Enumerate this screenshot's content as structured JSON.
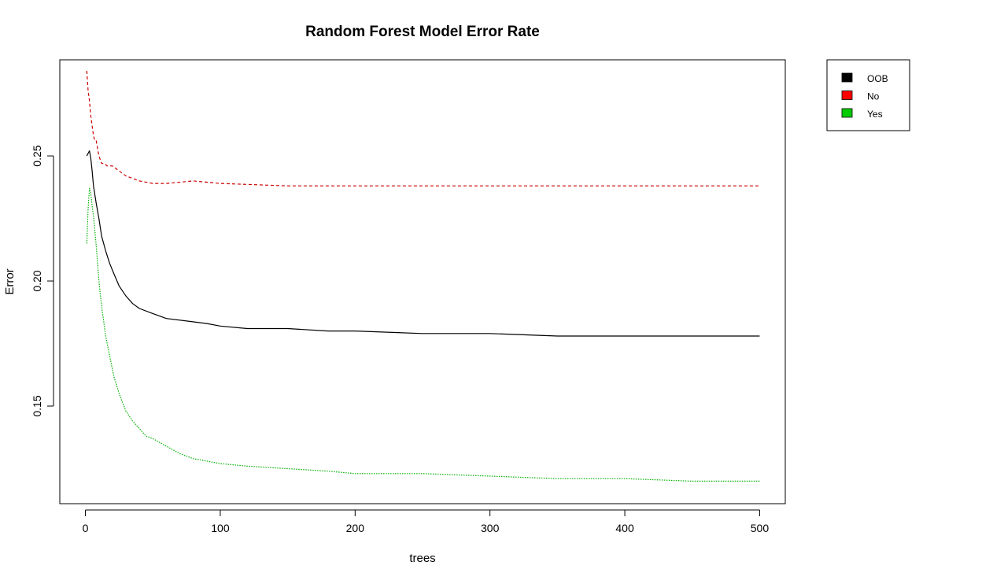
{
  "chart_data": {
    "type": "line",
    "title": "Random Forest Model Error Rate",
    "xlabel": "trees",
    "ylabel": "Error",
    "xlim": [
      -19,
      519
    ],
    "ylim": [
      0.111,
      0.2884
    ],
    "x_ticks": [
      0,
      100,
      200,
      300,
      400,
      500
    ],
    "x_tick_labels": [
      "0",
      "100",
      "200",
      "300",
      "400",
      "500"
    ],
    "y_ticks": [
      0.15,
      0.2,
      0.25
    ],
    "y_tick_labels": [
      "0.15",
      "0.20",
      "0.25"
    ],
    "grid": false,
    "legend_position": "outside-top-right",
    "series": [
      {
        "name": "OOB",
        "color": "#000000",
        "dash": "solid",
        "x": [
          1,
          2,
          3,
          4,
          5,
          6,
          8,
          10,
          12,
          15,
          18,
          21,
          25,
          30,
          35,
          40,
          50,
          60,
          75,
          90,
          100,
          120,
          150,
          180,
          200,
          250,
          300,
          350,
          400,
          450,
          500
        ],
        "values": [
          0.25,
          0.251,
          0.252,
          0.249,
          0.244,
          0.238,
          0.231,
          0.225,
          0.218,
          0.212,
          0.207,
          0.203,
          0.198,
          0.194,
          0.191,
          0.189,
          0.187,
          0.185,
          0.184,
          0.183,
          0.182,
          0.181,
          0.181,
          0.18,
          0.18,
          0.179,
          0.179,
          0.178,
          0.178,
          0.178,
          0.178
        ]
      },
      {
        "name": "No",
        "color": "#cc0000",
        "dash": "dashed",
        "x": [
          1,
          2,
          3,
          4,
          5,
          6,
          7,
          8,
          10,
          12,
          14,
          16,
          20,
          25,
          30,
          35,
          40,
          50,
          60,
          80,
          100,
          150,
          200,
          250,
          300,
          350,
          400,
          450,
          500
        ],
        "values": [
          0.284,
          0.276,
          0.272,
          0.266,
          0.262,
          0.258,
          0.256,
          0.256,
          0.25,
          0.247,
          0.247,
          0.246,
          0.246,
          0.244,
          0.242,
          0.241,
          0.24,
          0.239,
          0.239,
          0.24,
          0.239,
          0.238,
          0.238,
          0.238,
          0.238,
          0.238,
          0.238,
          0.238,
          0.238
        ]
      },
      {
        "name": "Yes",
        "color": "#00b000",
        "dash": "dotted",
        "x": [
          1,
          2,
          3,
          4,
          5,
          6,
          7,
          8,
          10,
          12,
          15,
          18,
          21,
          25,
          30,
          35,
          40,
          45,
          50,
          60,
          70,
          80,
          100,
          120,
          150,
          180,
          200,
          250,
          300,
          350,
          400,
          450,
          500
        ],
        "values": [
          0.215,
          0.229,
          0.237,
          0.235,
          0.23,
          0.226,
          0.22,
          0.214,
          0.2,
          0.19,
          0.178,
          0.17,
          0.162,
          0.155,
          0.148,
          0.144,
          0.141,
          0.138,
          0.137,
          0.134,
          0.131,
          0.129,
          0.127,
          0.126,
          0.125,
          0.124,
          0.123,
          0.123,
          0.122,
          0.121,
          0.121,
          0.12,
          0.12
        ]
      }
    ]
  }
}
